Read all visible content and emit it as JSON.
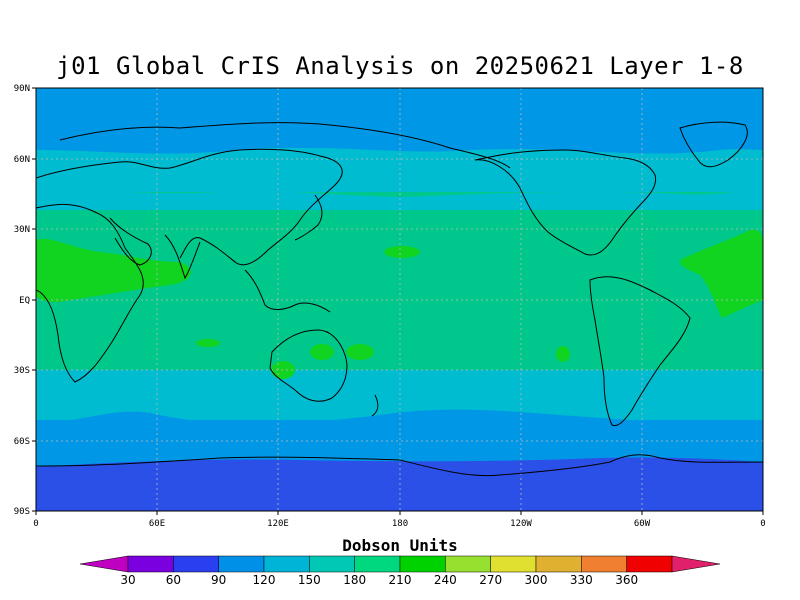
{
  "title": "j01 Global CrIS Analysis on 20250621 Layer 1-8",
  "colorbar": {
    "label": "Dobson Units",
    "ticks": [
      "30",
      "60",
      "90",
      "120",
      "150",
      "180",
      "210",
      "240",
      "270",
      "300",
      "330",
      "360"
    ],
    "colors": [
      "#c000c0",
      "#7a00e0",
      "#2a3ff0",
      "#0090e8",
      "#00b4d8",
      "#00c8b4",
      "#00d880",
      "#00d200",
      "#98e030",
      "#e0e030",
      "#e0b030",
      "#f08030",
      "#f00000",
      "#e0206a"
    ]
  },
  "map": {
    "lat_labels": [
      "90N",
      "60N",
      "30N",
      "EQ",
      "30S",
      "60S",
      "90S"
    ],
    "lon_labels": [
      "0",
      "60E",
      "120E",
      "180",
      "120W",
      "60W",
      "0"
    ]
  },
  "chart_data": {
    "type": "heatmap",
    "title": "j01 Global CrIS Analysis on 20250621 Layer 1-8",
    "colorbar_label": "Dobson Units",
    "units": "Dobson Units",
    "colorbar_levels": [
      30,
      60,
      90,
      120,
      150,
      180,
      210,
      240,
      270,
      300,
      330,
      360
    ],
    "xlim": [
      0,
      360
    ],
    "ylim": [
      -90,
      90
    ],
    "zonal_pattern": [
      {
        "lat_range": [
          58,
          90
        ],
        "value_range": [
          90,
          120
        ]
      },
      {
        "lat_range": [
          45,
          58
        ],
        "value_range": [
          120,
          150
        ]
      },
      {
        "lat_range": [
          -28,
          45
        ],
        "value_range": [
          150,
          180
        ]
      },
      {
        "lat_range": [
          -40,
          -28
        ],
        "value_range": [
          120,
          150
        ]
      },
      {
        "lat_range": [
          -62,
          -40
        ],
        "value_range": [
          90,
          120
        ]
      },
      {
        "lat_range": [
          -90,
          -62
        ],
        "value_range": [
          60,
          90
        ]
      }
    ],
    "local_maxima_regions": [
      {
        "lat": 20,
        "lon": 20,
        "value_range": [
          180,
          210
        ]
      },
      {
        "lat": 20,
        "lon": 320,
        "value_range": [
          180,
          210
        ]
      },
      {
        "lat": 22,
        "lon": 180,
        "value_range": [
          180,
          210
        ]
      },
      {
        "lat": -22,
        "lon": 130,
        "value_range": [
          180,
          210
        ]
      }
    ],
    "grid": true
  }
}
